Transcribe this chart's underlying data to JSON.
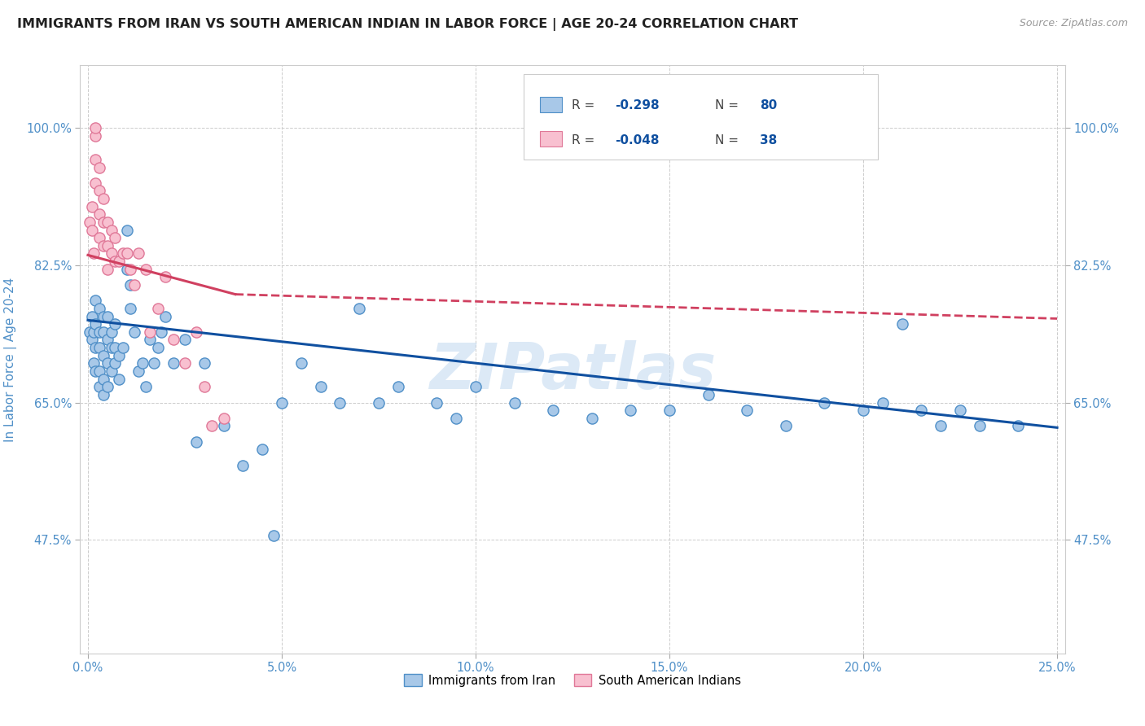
{
  "title": "IMMIGRANTS FROM IRAN VS SOUTH AMERICAN INDIAN IN LABOR FORCE | AGE 20-24 CORRELATION CHART",
  "source": "Source: ZipAtlas.com",
  "ylabel": "In Labor Force | Age 20-24",
  "watermark": "ZIPatlas",
  "x_tick_labels": [
    "0.0%",
    "5.0%",
    "10.0%",
    "15.0%",
    "20.0%",
    "25.0%"
  ],
  "x_tick_values": [
    0.0,
    0.05,
    0.1,
    0.15,
    0.2,
    0.25
  ],
  "y_tick_labels": [
    "47.5%",
    "65.0%",
    "82.5%",
    "100.0%"
  ],
  "y_tick_values": [
    0.475,
    0.65,
    0.825,
    1.0
  ],
  "xlim": [
    -0.002,
    0.252
  ],
  "ylim": [
    0.33,
    1.08
  ],
  "iran_color": "#a8c8e8",
  "iran_edge_color": "#5090c8",
  "south_color": "#f8c0d0",
  "south_edge_color": "#e07898",
  "trend_iran_color": "#1050a0",
  "trend_south_color": "#d04060",
  "background_color": "#ffffff",
  "grid_color": "#cccccc",
  "title_fontsize": 11.5,
  "tick_color": "#5090c8",
  "iran_x": [
    0.0005,
    0.001,
    0.001,
    0.0015,
    0.0015,
    0.002,
    0.002,
    0.002,
    0.002,
    0.003,
    0.003,
    0.003,
    0.003,
    0.003,
    0.004,
    0.004,
    0.004,
    0.004,
    0.004,
    0.005,
    0.005,
    0.005,
    0.005,
    0.006,
    0.006,
    0.006,
    0.007,
    0.007,
    0.007,
    0.008,
    0.008,
    0.009,
    0.01,
    0.01,
    0.011,
    0.011,
    0.012,
    0.013,
    0.014,
    0.015,
    0.016,
    0.017,
    0.018,
    0.019,
    0.02,
    0.022,
    0.025,
    0.028,
    0.03,
    0.035,
    0.04,
    0.045,
    0.048,
    0.05,
    0.055,
    0.06,
    0.065,
    0.07,
    0.075,
    0.08,
    0.09,
    0.095,
    0.1,
    0.11,
    0.12,
    0.13,
    0.14,
    0.15,
    0.16,
    0.17,
    0.18,
    0.19,
    0.2,
    0.205,
    0.21,
    0.215,
    0.22,
    0.225,
    0.23,
    0.24
  ],
  "iran_y": [
    0.74,
    0.73,
    0.76,
    0.7,
    0.74,
    0.69,
    0.72,
    0.75,
    0.78,
    0.67,
    0.69,
    0.72,
    0.74,
    0.77,
    0.66,
    0.68,
    0.71,
    0.74,
    0.76,
    0.67,
    0.7,
    0.73,
    0.76,
    0.69,
    0.72,
    0.74,
    0.7,
    0.72,
    0.75,
    0.68,
    0.71,
    0.72,
    0.82,
    0.87,
    0.77,
    0.8,
    0.74,
    0.69,
    0.7,
    0.67,
    0.73,
    0.7,
    0.72,
    0.74,
    0.76,
    0.7,
    0.73,
    0.6,
    0.7,
    0.62,
    0.57,
    0.59,
    0.48,
    0.65,
    0.7,
    0.67,
    0.65,
    0.77,
    0.65,
    0.67,
    0.65,
    0.63,
    0.67,
    0.65,
    0.64,
    0.63,
    0.64,
    0.64,
    0.66,
    0.64,
    0.62,
    0.65,
    0.64,
    0.65,
    0.75,
    0.64,
    0.62,
    0.64,
    0.62,
    0.62
  ],
  "south_x": [
    0.0005,
    0.001,
    0.001,
    0.0015,
    0.002,
    0.002,
    0.002,
    0.002,
    0.003,
    0.003,
    0.003,
    0.003,
    0.004,
    0.004,
    0.004,
    0.005,
    0.005,
    0.005,
    0.006,
    0.006,
    0.007,
    0.007,
    0.008,
    0.009,
    0.01,
    0.011,
    0.012,
    0.013,
    0.015,
    0.016,
    0.018,
    0.02,
    0.022,
    0.025,
    0.028,
    0.03,
    0.032,
    0.035
  ],
  "south_y": [
    0.88,
    0.87,
    0.9,
    0.84,
    0.93,
    0.96,
    0.99,
    1.0,
    0.86,
    0.89,
    0.92,
    0.95,
    0.85,
    0.88,
    0.91,
    0.82,
    0.85,
    0.88,
    0.84,
    0.87,
    0.83,
    0.86,
    0.83,
    0.84,
    0.84,
    0.82,
    0.8,
    0.84,
    0.82,
    0.74,
    0.77,
    0.81,
    0.73,
    0.7,
    0.74,
    0.67,
    0.62,
    0.63
  ],
  "iran_trend_x0": 0.0,
  "iran_trend_x1": 0.25,
  "iran_trend_y0": 0.755,
  "iran_trend_y1": 0.618,
  "south_trend_x0": 0.0,
  "south_trend_x1": 0.038,
  "south_trend_xdash1": 0.25,
  "south_trend_y0": 0.838,
  "south_trend_y1": 0.788,
  "south_trend_ydash1": 0.757
}
